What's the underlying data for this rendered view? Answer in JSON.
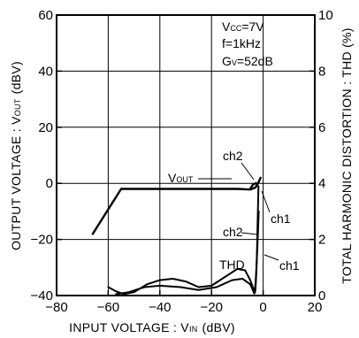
{
  "chart_data": {
    "type": "line",
    "xlabel": "INPUT VOLTAGE : V",
    "xlabel_sub": "IN",
    "xlabel_unit": "(dBV)",
    "ylabel_left": "OUTPUT VOLTAGE : V",
    "ylabel_left_sub": "OUT",
    "ylabel_left_unit": "(dBV)",
    "ylabel_right": "TOTAL HARMONIC DISTORTION : THD (%)",
    "xlim": [
      -80,
      20
    ],
    "ylim_left": [
      -40,
      60
    ],
    "ylim_right": [
      0,
      10
    ],
    "x_ticks": [
      "−80",
      "−60",
      "−40",
      "−20",
      "0",
      "20"
    ],
    "x_tick_values": [
      -80,
      -60,
      -40,
      -20,
      0,
      20
    ],
    "y_left_ticks": [
      "−40",
      "−20",
      "0",
      "20",
      "40",
      "60"
    ],
    "y_left_tick_values": [
      -40,
      -20,
      0,
      20,
      40,
      60
    ],
    "y_right_ticks": [
      "0",
      "2",
      "4",
      "6",
      "8",
      "10"
    ],
    "y_right_tick_values": [
      0,
      2,
      4,
      6,
      8,
      10
    ],
    "conditions": {
      "vcc_label": "V",
      "vcc_sub": "CC",
      "vcc_value": "=7V",
      "freq": "f=1kHz",
      "gv_label": "G",
      "gv_sub": "V",
      "gv_value": "=52dB"
    },
    "annotations": {
      "vout_label": "V",
      "vout_sub": "OUT",
      "thd_label": "THD",
      "ch2_upper": "ch2",
      "ch1_upper": "ch1",
      "ch2_lower": "ch2",
      "ch1_lower": "ch1"
    },
    "series": [
      {
        "axis": "left",
        "x": [
          -66,
          -55,
          -48,
          -40,
          -30,
          -20,
          -10,
          -5,
          -3,
          -2,
          -1
        ],
        "y": [
          -18,
          -2,
          -2,
          -2,
          -2,
          -2,
          -2,
          -2.2,
          -1.5,
          0,
          2
        ]
      },
      {
        "axis": "left",
        "x": [
          -5,
          -4,
          -3,
          -2.5
        ],
        "y": [
          -2,
          -0.5,
          0,
          0
        ]
      },
      {
        "axis": "right",
        "x": [
          -60,
          -57,
          -54,
          -50,
          -45,
          -40,
          -35,
          -30,
          -25,
          -20,
          -15,
          -10,
          -7,
          -5,
          -4,
          -3.2
        ],
        "y": [
          0.3,
          0.15,
          0.05,
          0.12,
          0.4,
          0.55,
          0.6,
          0.5,
          0.3,
          0.35,
          0.65,
          0.95,
          0.9,
          0.55,
          0.3,
          0.1
        ]
      },
      {
        "axis": "right",
        "x": [
          -57,
          -52,
          -46,
          -40,
          -32,
          -25,
          -18,
          -12,
          -8,
          -5,
          -4,
          -3.5
        ],
        "y": [
          0.05,
          0.12,
          0.3,
          0.35,
          0.3,
          0.2,
          0.3,
          0.55,
          0.6,
          0.4,
          0.2,
          0.08
        ]
      },
      {
        "axis": "right",
        "x": [
          -3.2,
          -3.0,
          -2.8,
          -2.6,
          -2.4,
          -2.2,
          -2.0,
          -1.8
        ],
        "y": [
          0.1,
          0.2,
          0.5,
          0.9,
          1.5,
          2.4,
          3.2,
          3.9
        ]
      },
      {
        "axis": "right",
        "x": [
          -3.5,
          -3.2,
          -2.9,
          -2.6,
          -2.3,
          -2.0,
          -1.7
        ],
        "y": [
          0.08,
          0.2,
          0.5,
          1.0,
          1.6,
          2.3,
          3.0
        ]
      }
    ]
  }
}
